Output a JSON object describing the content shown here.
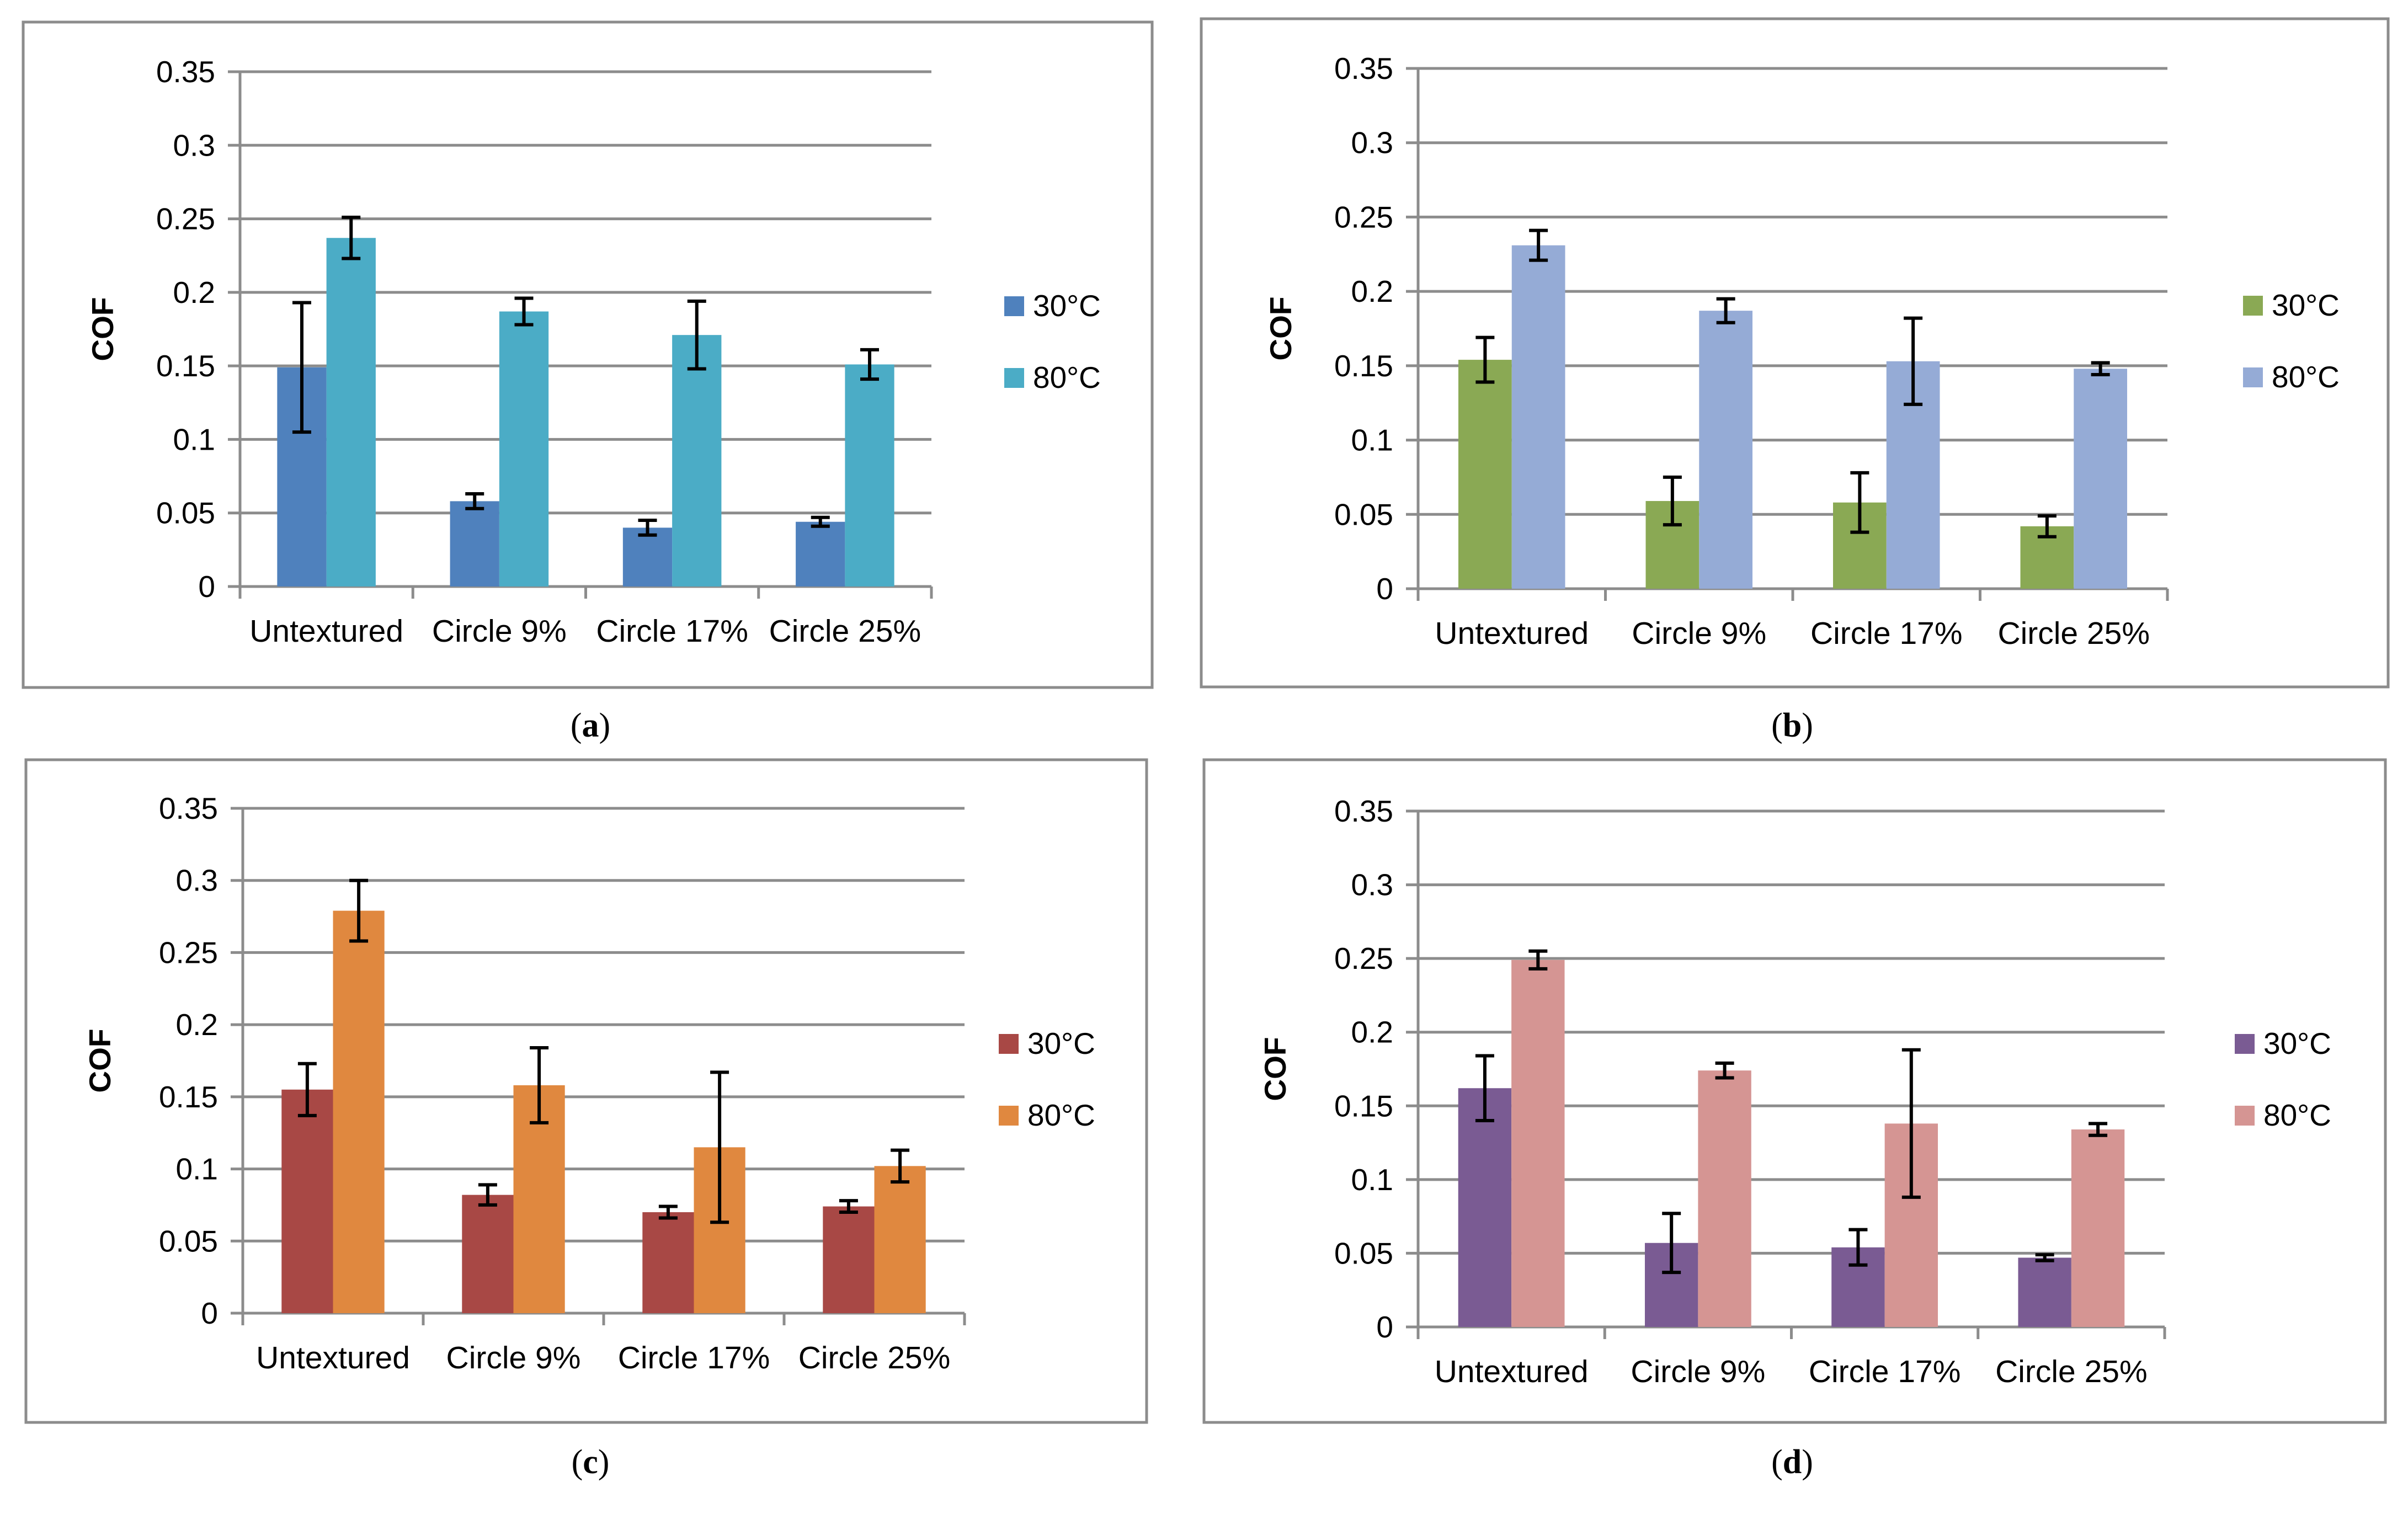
{
  "chart_data": [
    {
      "type": "bar",
      "panel": "a",
      "categories": [
        "Untextured",
        "Circle 9%",
        "Circle 17%",
        "Circle 25%"
      ],
      "ylabel": "COF",
      "ylim": [
        0,
        0.35
      ],
      "yticks": [
        "0",
        "0.05",
        "0.1",
        "0.15",
        "0.2",
        "0.25",
        "0.3",
        "0.35"
      ],
      "grid": true,
      "legend": "right",
      "series": [
        {
          "name": "30°C",
          "color": "#4f81bd",
          "values": [
            0.149,
            0.058,
            0.04,
            0.044
          ],
          "errors": [
            0.044,
            0.005,
            0.005,
            0.003
          ]
        },
        {
          "name": "80°C",
          "color": "#4bacc6",
          "values": [
            0.237,
            0.187,
            0.171,
            0.151
          ],
          "errors": [
            0.014,
            0.009,
            0.023,
            0.01
          ]
        }
      ]
    },
    {
      "type": "bar",
      "panel": "b",
      "categories": [
        "Untextured",
        "Circle 9%",
        "Circle 17%",
        "Circle 25%"
      ],
      "ylabel": "COF",
      "ylim": [
        0,
        0.35
      ],
      "yticks": [
        "0",
        "0.05",
        "0.1",
        "0.15",
        "0.2",
        "0.25",
        "0.3",
        "0.35"
      ],
      "grid": true,
      "legend": "right",
      "series": [
        {
          "name": "30°C",
          "color": "#8aa954",
          "values": [
            0.154,
            0.059,
            0.058,
            0.042
          ],
          "errors": [
            0.015,
            0.016,
            0.02,
            0.007
          ]
        },
        {
          "name": "80°C",
          "color": "#95abd6",
          "values": [
            0.231,
            0.187,
            0.153,
            0.148
          ],
          "errors": [
            0.01,
            0.008,
            0.029,
            0.004
          ]
        }
      ]
    },
    {
      "type": "bar",
      "panel": "c",
      "categories": [
        "Untextured",
        "Circle 9%",
        "Circle 17%",
        "Circle 25%"
      ],
      "ylabel": "COF",
      "ylim": [
        0,
        0.35
      ],
      "yticks": [
        "0",
        "0.05",
        "0.1",
        "0.15",
        "0.2",
        "0.25",
        "0.3",
        "0.35"
      ],
      "grid": true,
      "legend": "right",
      "series": [
        {
          "name": "30°C",
          "color": "#a84845",
          "values": [
            0.155,
            0.082,
            0.07,
            0.074
          ],
          "errors": [
            0.018,
            0.007,
            0.004,
            0.004
          ]
        },
        {
          "name": "80°C",
          "color": "#e0883f",
          "values": [
            0.279,
            0.158,
            0.115,
            0.102
          ],
          "errors": [
            0.021,
            0.026,
            0.052,
            0.011
          ]
        }
      ]
    },
    {
      "type": "bar",
      "panel": "d",
      "categories": [
        "Untextured",
        "Circle 9%",
        "Circle 17%",
        "Circle 25%"
      ],
      "ylabel": "COF",
      "ylim": [
        0,
        0.35
      ],
      "yticks": [
        "0",
        "0.05",
        "0.1",
        "0.15",
        "0.2",
        "0.25",
        "0.3",
        "0.35"
      ],
      "grid": true,
      "legend": "right",
      "series": [
        {
          "name": "30°C",
          "color": "#7a5b93",
          "values": [
            0.162,
            0.057,
            0.054,
            0.047
          ],
          "errors": [
            0.022,
            0.02,
            0.012,
            0.002
          ]
        },
        {
          "name": "80°C",
          "color": "#d59593",
          "values": [
            0.249,
            0.174,
            0.138,
            0.134
          ],
          "errors": [
            0.006,
            0.005,
            0.05,
            0.004
          ]
        }
      ]
    }
  ],
  "captions": [
    "a",
    "b",
    "c",
    "d"
  ]
}
